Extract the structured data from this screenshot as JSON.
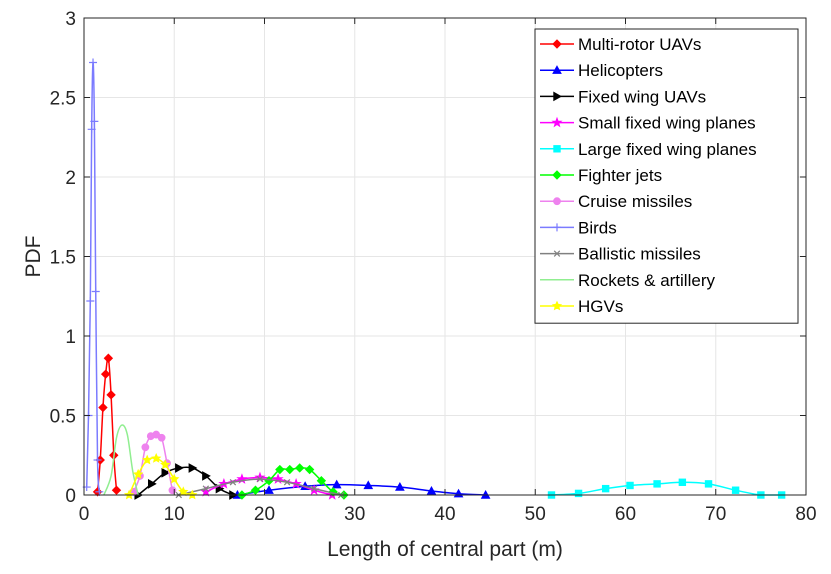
{
  "chart_data": {
    "type": "line",
    "title": "",
    "xlabel": "Length of central part (m)",
    "ylabel": "PDF",
    "xlim": [
      0,
      80
    ],
    "ylim": [
      0,
      3
    ],
    "xticks": [
      0,
      10,
      20,
      30,
      40,
      50,
      60,
      70,
      80
    ],
    "yticks": [
      0,
      0.5,
      1,
      1.5,
      2,
      2.5,
      3
    ],
    "xtick_labels": [
      "0",
      "10",
      "20",
      "30",
      "40",
      "50",
      "60",
      "70",
      "80"
    ],
    "ytick_labels": [
      "0",
      "0.5",
      "1",
      "1.5",
      "2",
      "2.5",
      "3"
    ],
    "grid": true,
    "legend_position": "top-right",
    "series": [
      {
        "name": "Multi-rotor UAVs",
        "color": "#ff0000",
        "marker": "diamond",
        "x": [
          1.5,
          1.8,
          2.1,
          2.4,
          2.7,
          3.0,
          3.3,
          3.6
        ],
        "y": [
          0.02,
          0.22,
          0.55,
          0.76,
          0.86,
          0.63,
          0.25,
          0.03
        ]
      },
      {
        "name": "Helicopters",
        "color": "#0000ff",
        "marker": "triangle",
        "x": [
          17.0,
          20.5,
          24.5,
          28.0,
          31.5,
          35.0,
          38.5,
          41.5,
          44.5
        ],
        "y": [
          0.0,
          0.03,
          0.055,
          0.065,
          0.06,
          0.05,
          0.025,
          0.008,
          0.0
        ]
      },
      {
        "name": "Fixed wing UAVs",
        "color": "#000000",
        "marker": "triangle-right",
        "x": [
          6.0,
          7.5,
          9.0,
          10.5,
          12.0,
          13.5,
          15.0,
          16.5
        ],
        "y": [
          0.0,
          0.07,
          0.14,
          0.17,
          0.17,
          0.12,
          0.04,
          0.0
        ]
      },
      {
        "name": "Small fixed wing planes",
        "color": "#ff00ff",
        "marker": "star",
        "x": [
          13.5,
          15.5,
          17.5,
          19.5,
          21.5,
          23.5,
          25.5,
          27.5
        ],
        "y": [
          0.02,
          0.07,
          0.1,
          0.11,
          0.1,
          0.07,
          0.03,
          0.0
        ]
      },
      {
        "name": "Large fixed wing planes",
        "color": "#00ffff",
        "marker": "square",
        "x": [
          51.8,
          54.8,
          57.8,
          60.5,
          63.5,
          66.3,
          69.2,
          72.2,
          75.0,
          77.3
        ],
        "y": [
          0.0,
          0.01,
          0.04,
          0.06,
          0.07,
          0.08,
          0.07,
          0.03,
          0.0,
          0.0
        ]
      },
      {
        "name": "Fighter jets",
        "color": "#00ff00",
        "marker": "diamond",
        "x": [
          17.5,
          19.0,
          20.5,
          21.7,
          22.8,
          23.9,
          25.0,
          26.3,
          27.6,
          28.8
        ],
        "y": [
          0.0,
          0.03,
          0.09,
          0.16,
          0.16,
          0.17,
          0.16,
          0.09,
          0.02,
          0.0
        ]
      },
      {
        "name": "Cruise missiles",
        "color": "#ee82ee",
        "marker": "circle",
        "x": [
          5.5,
          6.2,
          6.8,
          7.4,
          8.0,
          8.6,
          9.2,
          9.8
        ],
        "y": [
          0.02,
          0.12,
          0.3,
          0.37,
          0.38,
          0.36,
          0.2,
          0.03
        ]
      },
      {
        "name": "Birds",
        "color": "#7b7bff",
        "marker": "plus",
        "x": [
          0.3,
          0.5,
          0.7,
          0.85,
          1.0,
          1.15,
          1.3,
          1.5,
          1.7
        ],
        "y": [
          0.05,
          0.5,
          1.22,
          2.3,
          2.72,
          2.35,
          1.28,
          0.22,
          0.02
        ]
      },
      {
        "name": "Ballistic missiles",
        "color": "#808080",
        "marker": "x",
        "x": [
          10.5,
          13.5,
          16.5,
          19.5,
          22.5,
          25.5,
          28.5
        ],
        "y": [
          0.0,
          0.04,
          0.08,
          0.1,
          0.08,
          0.04,
          0.0
        ]
      },
      {
        "name": "Rockets & artillery",
        "color": "#90ee90",
        "marker": "none",
        "x": [
          2.2,
          3.0,
          3.6,
          4.2,
          4.8,
          5.4,
          6.0
        ],
        "y": [
          0.0,
          0.12,
          0.36,
          0.44,
          0.38,
          0.15,
          0.0
        ]
      },
      {
        "name": "HGVs",
        "color": "#ffff00",
        "marker": "pentagram",
        "x": [
          5.0,
          6.0,
          7.0,
          8.0,
          9.0,
          10.0,
          11.0,
          12.0
        ],
        "y": [
          0.0,
          0.13,
          0.22,
          0.23,
          0.19,
          0.1,
          0.02,
          0.0
        ]
      }
    ]
  }
}
